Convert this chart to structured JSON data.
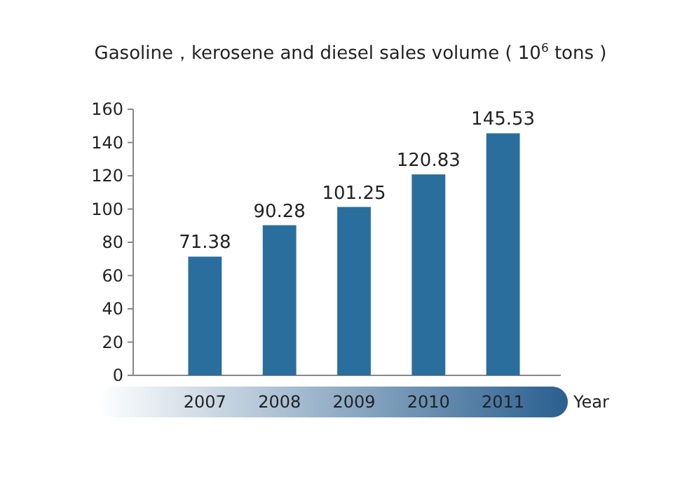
{
  "chart_data": {
    "type": "bar",
    "title": "Gasoline，kerosene and diesel sales volume ( 10$^{6}$ tons )",
    "xlabel": "Year",
    "categories": [
      "2007",
      "2008",
      "2009",
      "2010",
      "2011"
    ],
    "values": [
      71.38,
      90.28,
      101.25,
      120.83,
      145.53
    ],
    "color": "#2a6e9e",
    "data_labels": true,
    "ylim": [
      0,
      160
    ],
    "yticks": [
      0,
      20,
      40,
      60,
      80,
      100,
      120,
      140,
      160
    ]
  }
}
